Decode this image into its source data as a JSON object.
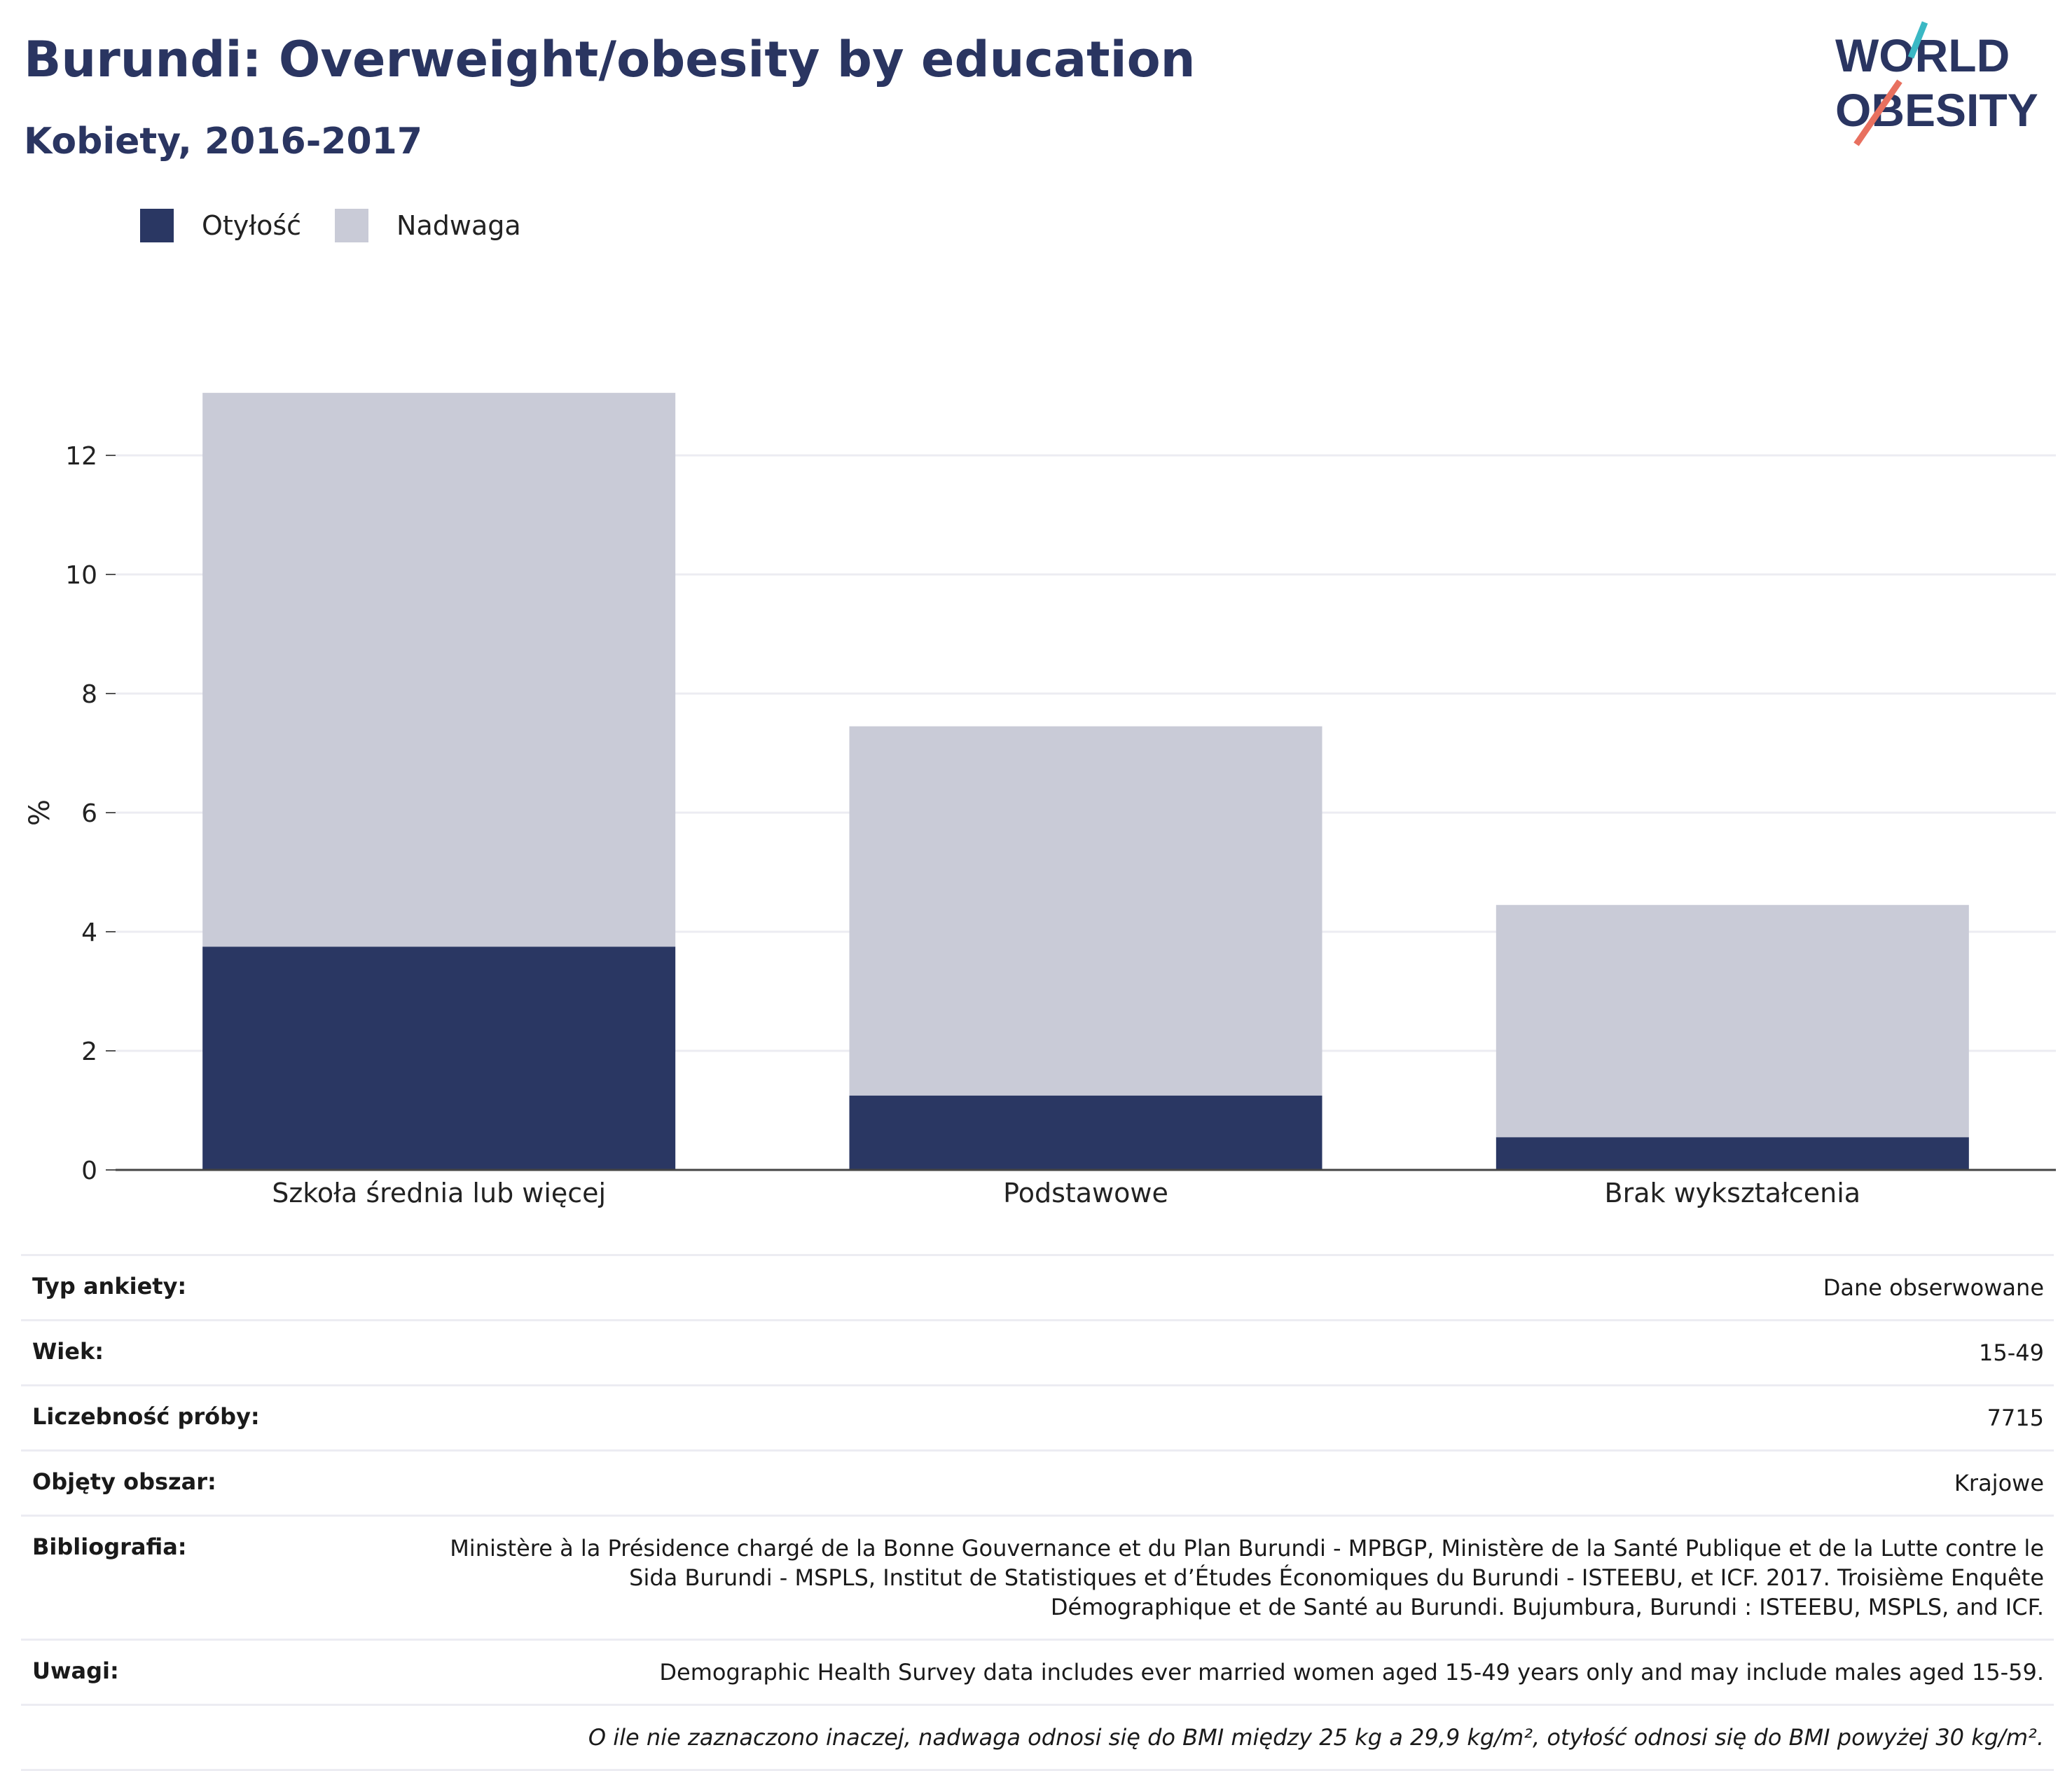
{
  "header": {
    "title": "Burundi: Overweight/obesity by education",
    "subtitle": "Kobiety, 2016-2017"
  },
  "logo": {
    "line1": "WORLD",
    "line2": "OBESITY",
    "accent_teal": "#3ab8c4",
    "accent_coral": "#e8705f"
  },
  "legend": [
    {
      "label": "Otyłość",
      "color": "#2a3763"
    },
    {
      "label": "Nadwaga",
      "color": "#c9cbd7"
    }
  ],
  "chart_data": {
    "type": "bar",
    "stacked": true,
    "categories": [
      "Szkoła średnia lub więcej",
      "Podstawowe",
      "Brak wykształcenia"
    ],
    "series": [
      {
        "name": "Otyłość",
        "values": [
          3.75,
          1.25,
          0.55
        ],
        "color": "#2a3763"
      },
      {
        "name": "Nadwaga",
        "values": [
          9.3,
          6.2,
          3.9
        ],
        "color": "#c9cbd7"
      }
    ],
    "ylabel": "%",
    "xlabel": "",
    "ylim": [
      0,
      13.5
    ],
    "yticks": [
      0,
      2,
      4,
      6,
      8,
      10,
      12
    ],
    "grid": true
  },
  "meta": [
    {
      "label": "Typ ankiety:",
      "value": "Dane obserwowane"
    },
    {
      "label": "Wiek:",
      "value": "15-49"
    },
    {
      "label": "Liczebność próby:",
      "value": "7715"
    },
    {
      "label": "Objęty obszar:",
      "value": "Krajowe"
    },
    {
      "label": "Bibliografia:",
      "value": "Ministère à la Présidence chargé de la Bonne Gouvernance et du Plan Burundi - MPBGP, Ministère de la Santé Publique et de la Lutte contre le Sida Burundi - MSPLS, Institut de Statistiques et d’Études Économiques du Burundi - ISTEEBU, et ICF. 2017. Troisième Enquête Démographique et de Santé au Burundi. Bujumbura, Burundi : ISTEEBU, MSPLS, and ICF."
    },
    {
      "label": "Uwagi:",
      "value": "Demographic Health Survey data includes ever married women aged 15-49 years only and may include males aged 15-59."
    },
    {
      "label": "",
      "value": "O ile nie zaznaczono inaczej, nadwaga odnosi się do BMI między 25 kg a 29,9 kg/m², otyłość odnosi się do BMI powyżej 30 kg/m²."
    }
  ]
}
